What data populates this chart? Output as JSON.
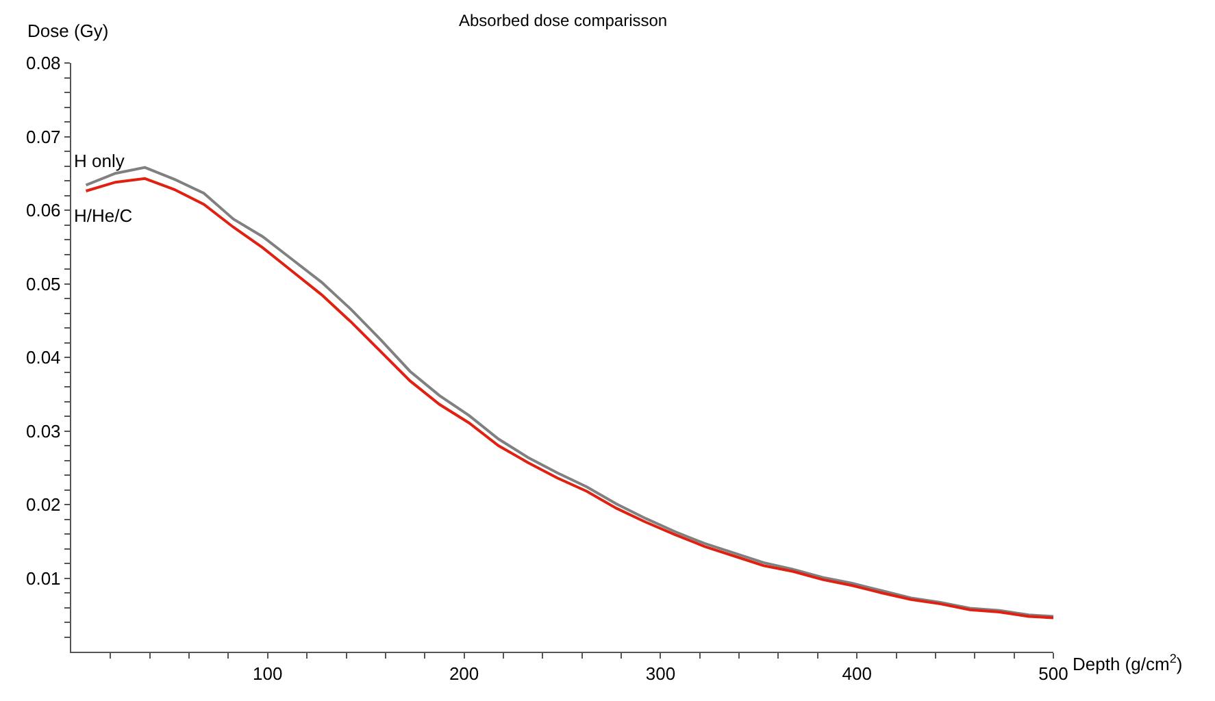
{
  "chart_data": {
    "type": "line",
    "title": "Absorbed dose comparisson",
    "xlabel": "Depth (g/cm$^{2}$)",
    "ylabel": "Dose (Gy)",
    "x": [
      7.5,
      22.5,
      37.5,
      52.5,
      67.5,
      82.5,
      97.5,
      112.5,
      127.5,
      142.5,
      157.5,
      172.5,
      187.5,
      202.5,
      217.5,
      232.5,
      247.5,
      262.5,
      277.5,
      292.5,
      307.5,
      322.5,
      337.5,
      352.5,
      367.5,
      382.5,
      397.5,
      412.5,
      427.5,
      442.5,
      457.5,
      472.5,
      487.5,
      500
    ],
    "series": [
      {
        "name": "H only",
        "color": "#808080",
        "values": [
          0.0634,
          0.065,
          0.0658,
          0.0642,
          0.0623,
          0.0588,
          0.0564,
          0.0533,
          0.0502,
          0.0465,
          0.0424,
          0.0381,
          0.0348,
          0.0321,
          0.0289,
          0.0264,
          0.0243,
          0.0224,
          0.0201,
          0.0181,
          0.0163,
          0.0147,
          0.0134,
          0.0121,
          0.0112,
          0.0101,
          0.0093,
          0.0083,
          0.0073,
          0.0067,
          0.0059,
          0.0056,
          0.005,
          0.0048
        ]
      },
      {
        "name": "H/He/C",
        "color": "#e02010",
        "values": [
          0.0626,
          0.0638,
          0.0643,
          0.0628,
          0.0608,
          0.0577,
          0.0549,
          0.0517,
          0.0485,
          0.0448,
          0.0408,
          0.0368,
          0.0336,
          0.0311,
          0.028,
          0.0257,
          0.0236,
          0.0218,
          0.0195,
          0.0176,
          0.0159,
          0.0143,
          0.013,
          0.0117,
          0.0109,
          0.0098,
          0.009,
          0.008,
          0.0071,
          0.0065,
          0.0057,
          0.0054,
          0.0048,
          0.0046
        ]
      }
    ],
    "xlim": [
      0,
      500
    ],
    "ylim": [
      0,
      0.08
    ],
    "xticks": [
      {
        "value": 20,
        "label": null
      },
      {
        "value": 40,
        "label": null
      },
      {
        "value": 60,
        "label": null
      },
      {
        "value": 80,
        "label": null
      },
      100,
      {
        "value": 120,
        "label": null
      },
      {
        "value": 140,
        "label": null
      },
      {
        "value": 160,
        "label": null
      },
      {
        "value": 180,
        "label": null
      },
      200,
      {
        "value": 220,
        "label": null
      },
      {
        "value": 240,
        "label": null
      },
      {
        "value": 260,
        "label": null
      },
      {
        "value": 280,
        "label": null
      },
      300,
      {
        "value": 320,
        "label": null
      },
      {
        "value": 340,
        "label": null
      },
      {
        "value": 360,
        "label": null
      },
      {
        "value": 380,
        "label": null
      },
      400,
      {
        "value": 420,
        "label": null
      },
      {
        "value": 440,
        "label": null
      },
      {
        "value": 460,
        "label": null
      },
      {
        "value": 480,
        "label": null
      },
      500
    ],
    "yticks": [
      {
        "value": 0.002,
        "label": null
      },
      {
        "value": 0.004,
        "label": null
      },
      {
        "value": 0.006,
        "label": null
      },
      {
        "value": 0.008,
        "label": null
      },
      0.01,
      {
        "value": 0.012,
        "label": null
      },
      {
        "value": 0.014,
        "label": null
      },
      {
        "value": 0.016,
        "label": null
      },
      {
        "value": 0.018,
        "label": null
      },
      0.02,
      {
        "value": 0.022,
        "label": null
      },
      {
        "value": 0.024,
        "label": null
      },
      {
        "value": 0.026,
        "label": null
      },
      {
        "value": 0.028,
        "label": null
      },
      0.03,
      {
        "value": 0.032,
        "label": null
      },
      {
        "value": 0.034,
        "label": null
      },
      {
        "value": 0.036,
        "label": null
      },
      {
        "value": 0.038,
        "label": null
      },
      0.04,
      {
        "value": 0.042,
        "label": null
      },
      {
        "value": 0.044,
        "label": null
      },
      {
        "value": 0.046,
        "label": null
      },
      {
        "value": 0.048,
        "label": null
      },
      0.05,
      {
        "value": 0.052,
        "label": null
      },
      {
        "value": 0.054,
        "label": null
      },
      {
        "value": 0.056,
        "label": null
      },
      {
        "value": 0.058,
        "label": null
      },
      0.06,
      {
        "value": 0.062,
        "label": null
      },
      {
        "value": 0.064,
        "label": null
      },
      {
        "value": 0.066,
        "label": null
      },
      {
        "value": 0.068,
        "label": null
      },
      0.07,
      {
        "value": 0.072,
        "label": null
      },
      {
        "value": 0.074,
        "label": null
      },
      {
        "value": 0.076,
        "label": null
      },
      {
        "value": 0.078,
        "label": null
      },
      0.08
    ],
    "legend": false,
    "marker": "none",
    "line_style": "solid"
  }
}
